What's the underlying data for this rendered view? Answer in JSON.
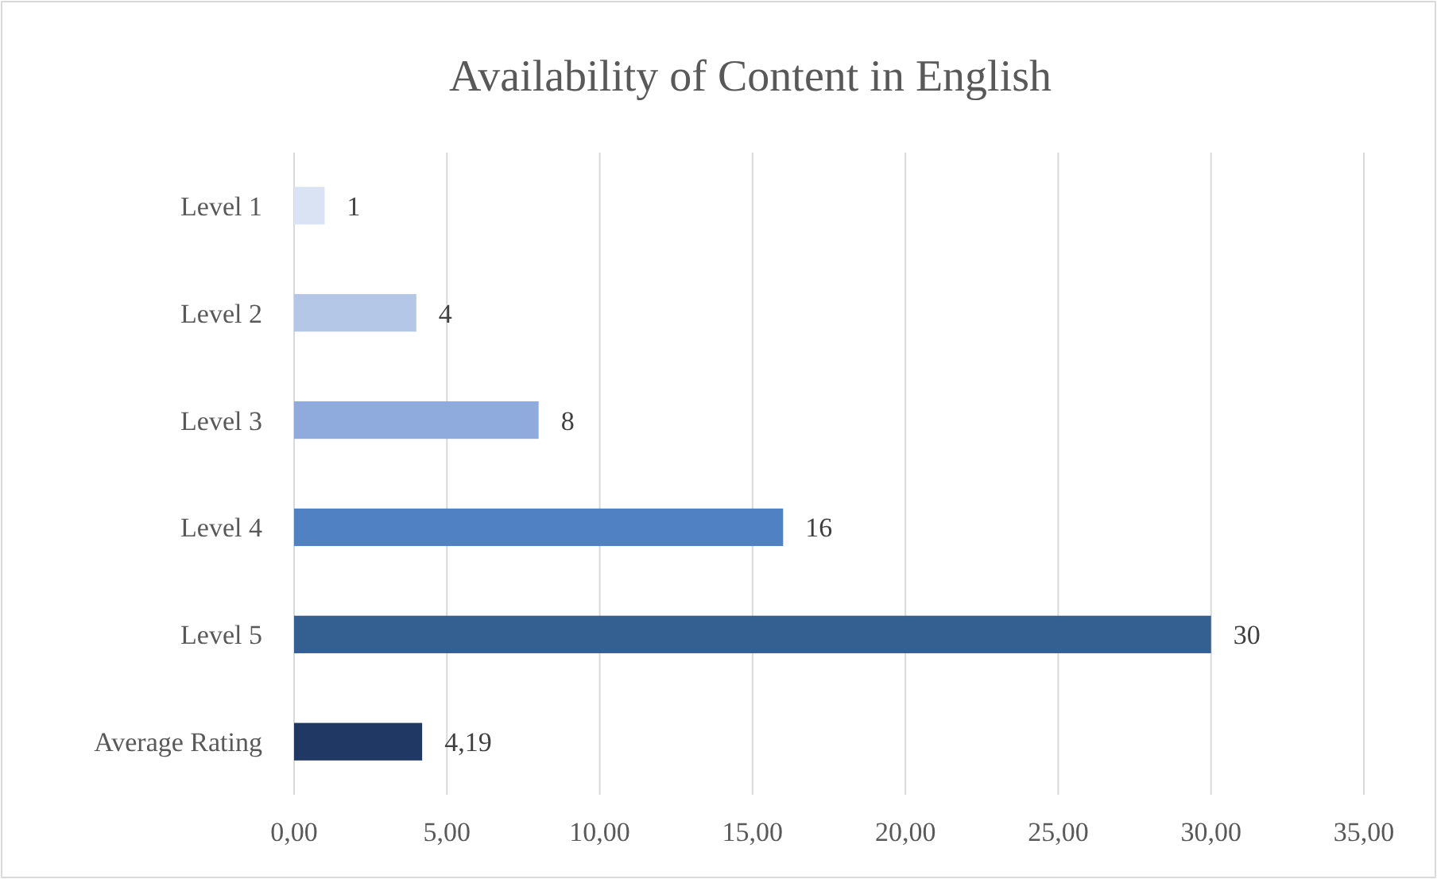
{
  "chart_data": {
    "type": "bar",
    "orientation": "horizontal",
    "title": "Availability  of Content in English",
    "categories": [
      "Level 1",
      "Level 2",
      "Level 3",
      "Level 4",
      "Level 5",
      "Average Rating"
    ],
    "values": [
      1,
      4,
      8,
      16,
      30,
      4.19
    ],
    "colors": [
      "#dae3f3",
      "#b4c7e7",
      "#8faadc",
      "#4f81c3",
      "#335f91",
      "#203864"
    ],
    "value_labels": [
      "1",
      "4",
      "8",
      "16",
      "30",
      "4,19"
    ],
    "xlim": [
      0,
      35
    ],
    "xticks": [
      {
        "value": 0,
        "label": "0,00"
      },
      {
        "value": 5,
        "label": "5,00"
      },
      {
        "value": 10,
        "label": "10,00"
      },
      {
        "value": 15,
        "label": "15,00"
      },
      {
        "value": 20,
        "label": "20,00"
      },
      {
        "value": 25,
        "label": "25,00"
      },
      {
        "value": 30,
        "label": "30,00"
      },
      {
        "value": 35,
        "label": "35,00"
      }
    ],
    "grid": "x"
  }
}
